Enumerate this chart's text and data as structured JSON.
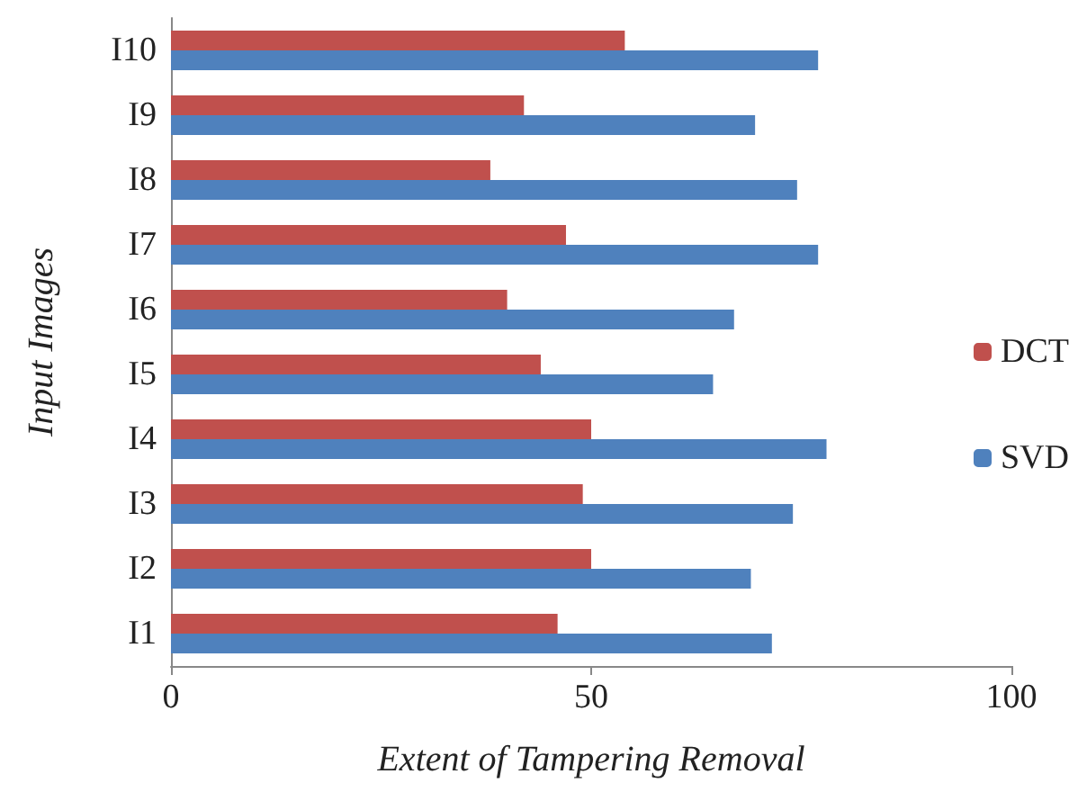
{
  "chart_data": {
    "type": "bar",
    "orientation": "horizontal",
    "xlabel": "Extent of Tampering Removal",
    "ylabel": "Input Images",
    "categories": [
      "I10",
      "I9",
      "I8",
      "I7",
      "I6",
      "I5",
      "I4",
      "I3",
      "I2",
      "I1"
    ],
    "series": [
      {
        "name": "DCT",
        "color": "#c0504d",
        "values": [
          54,
          42,
          38,
          47,
          40,
          44,
          50,
          49,
          50,
          46
        ]
      },
      {
        "name": "SVD",
        "color": "#4f81bd",
        "values": [
          77,
          69.5,
          74.5,
          77,
          67,
          64.5,
          78,
          74,
          69,
          71.5
        ]
      }
    ],
    "xlim": [
      0,
      100
    ],
    "xticks": [
      0,
      50,
      100
    ],
    "grid": false,
    "legend": "right"
  }
}
